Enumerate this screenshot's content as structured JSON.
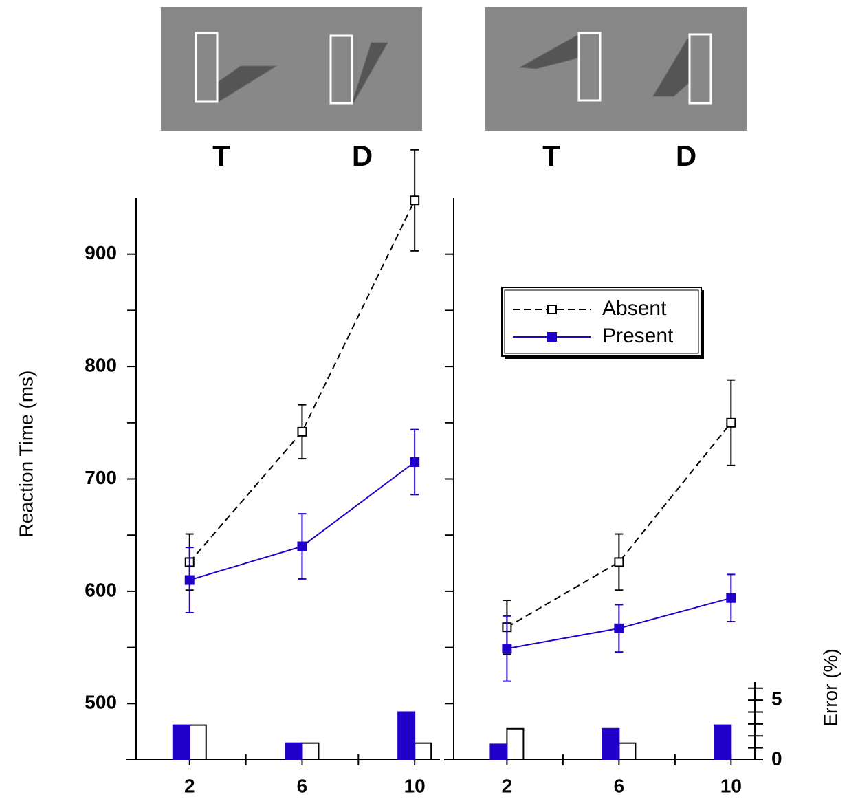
{
  "chart_data": [
    {
      "type": "line",
      "stimulus_labels": [
        "T",
        "D"
      ],
      "ylabel": "Reaction Time (ms)",
      "x": [
        2,
        6,
        10
      ],
      "xlim": [
        0.1,
        10.9
      ],
      "xticks": [
        2,
        6,
        10
      ],
      "xminorticks": [
        4,
        8
      ],
      "ylim": [
        450,
        950
      ],
      "yticks": [
        500,
        600,
        700,
        800,
        900
      ],
      "yminorticks": [
        550,
        650,
        750,
        850
      ],
      "ytick_labels": true,
      "y2lim": [
        0,
        6.5
      ],
      "series": [
        {
          "name": "Absent",
          "color": "#000000",
          "dashed": true,
          "filled": false,
          "values": [
            626,
            742,
            948
          ],
          "errors": [
            25,
            24,
            45
          ],
          "error_rates": [
            2.9,
            1.4,
            1.4
          ]
        },
        {
          "name": "Present",
          "color": "#2200cc",
          "dashed": false,
          "filled": true,
          "values": [
            610,
            640,
            715
          ],
          "errors": [
            29,
            29,
            29
          ],
          "error_rates": [
            2.9,
            1.4,
            4.0
          ]
        }
      ]
    },
    {
      "type": "line",
      "stimulus_labels": [
        "T",
        "D"
      ],
      "y2label": "Error (%)",
      "legend": "upper right",
      "x": [
        2,
        6,
        10
      ],
      "xlim": [
        0.1,
        10.9
      ],
      "xticks": [
        2,
        6,
        10
      ],
      "xminorticks": [
        4,
        8
      ],
      "ylim": [
        450,
        950
      ],
      "yticks": [
        500,
        600,
        700,
        800,
        900
      ],
      "yminorticks": [
        550,
        650,
        750,
        850
      ],
      "ytick_labels": false,
      "y2lim": [
        0,
        6.5
      ],
      "y2ticks": [
        0,
        5
      ],
      "y2minorticks": [
        1,
        2,
        3,
        4,
        6
      ],
      "series": [
        {
          "name": "Absent",
          "color": "#000000",
          "dashed": true,
          "filled": false,
          "values": [
            568,
            626,
            750
          ],
          "errors": [
            24,
            25,
            38
          ],
          "error_rates": [
            2.6,
            1.4,
            null
          ]
        },
        {
          "name": "Present",
          "color": "#2200cc",
          "dashed": false,
          "filled": true,
          "values": [
            549,
            567,
            594
          ],
          "errors": [
            29,
            21,
            21
          ],
          "error_rates": [
            1.3,
            2.6,
            2.9
          ]
        }
      ]
    }
  ]
}
